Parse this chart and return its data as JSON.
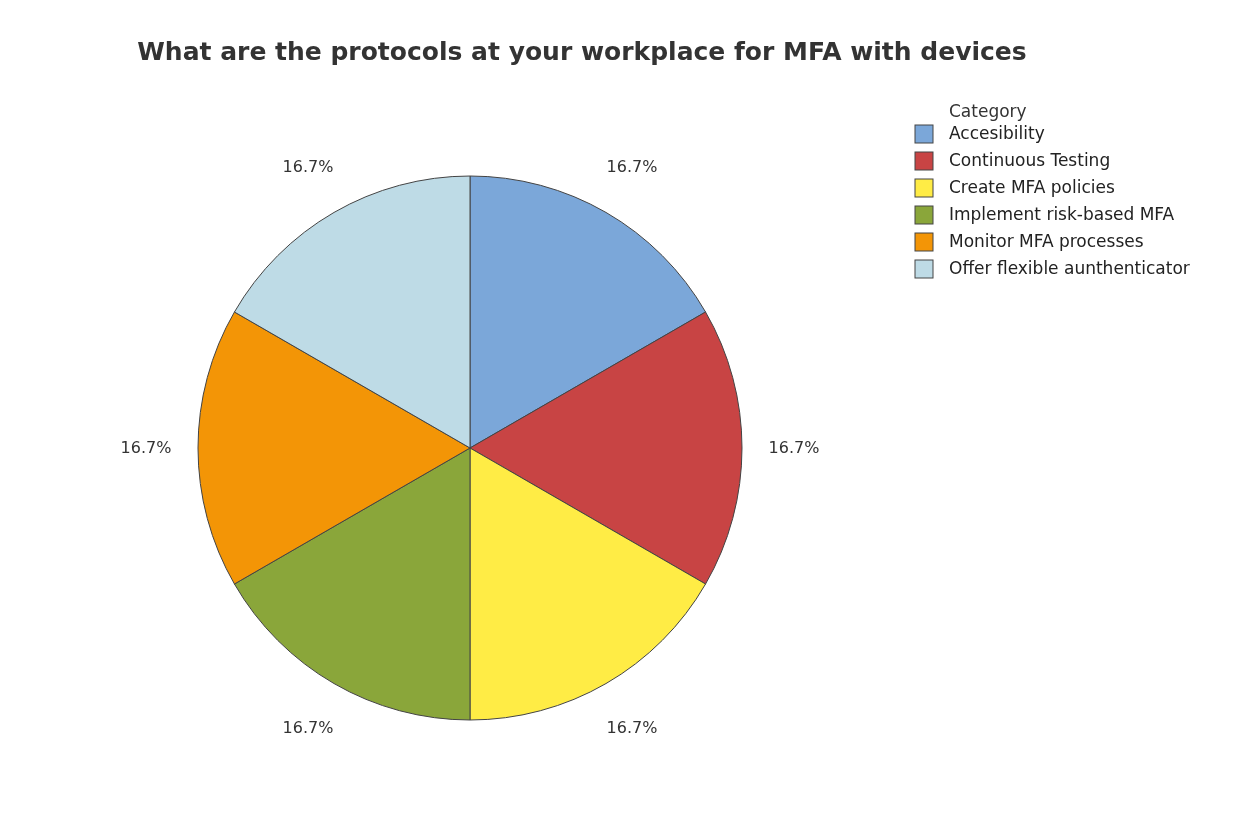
{
  "chart_data": {
    "type": "pie",
    "title": "What are the protocols at your workplace for MFA with devices",
    "legend_title": "Category",
    "categories": [
      "Accesibility",
      "Continuous Testing",
      "Create MFA policies",
      "Implement risk-based MFA",
      "Monitor MFA processes",
      "Offer flexible aunthenticator"
    ],
    "values": [
      16.7,
      16.7,
      16.7,
      16.7,
      16.7,
      16.7
    ],
    "colors": [
      "#7ba7d9",
      "#c84444",
      "#ffec45",
      "#8aa63a",
      "#f39506",
      "#bedbe6"
    ],
    "value_labels": [
      "16.7%",
      "16.7%",
      "16.7%",
      "16.7%",
      "16.7%",
      "16.7%"
    ],
    "legend": "top right"
  }
}
